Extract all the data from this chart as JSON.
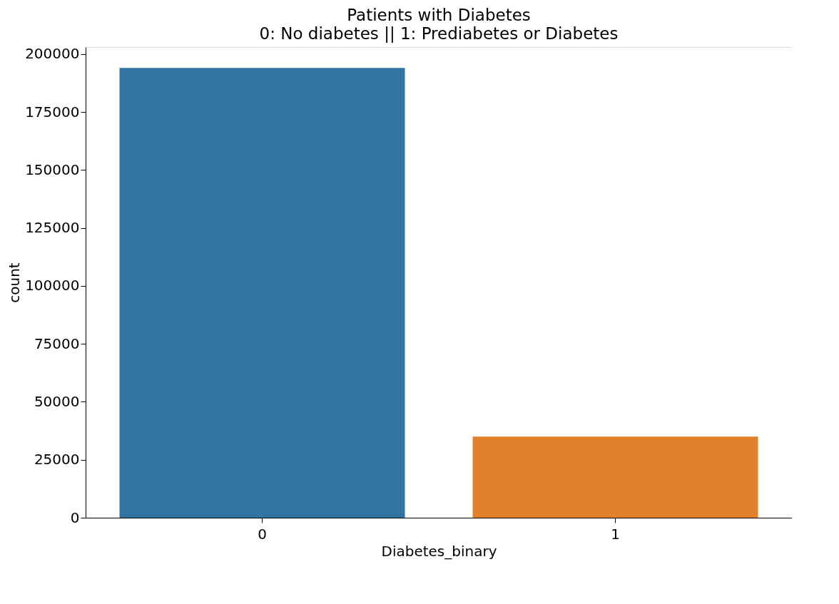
{
  "chart_data": {
    "type": "bar",
    "title": "Patients with Diabetes",
    "subtitle": "0: No diabetes || 1: Prediabetes or Diabetes",
    "xlabel": "Diabetes_binary",
    "ylabel": "count",
    "categories": [
      "0",
      "1"
    ],
    "values": [
      194000,
      35000
    ],
    "colors": [
      "#3274a1",
      "#e1812c"
    ],
    "ylim": [
      0,
      203000
    ],
    "yticks": [
      0,
      25000,
      50000,
      75000,
      100000,
      125000,
      150000,
      175000,
      200000
    ],
    "grid": false
  }
}
